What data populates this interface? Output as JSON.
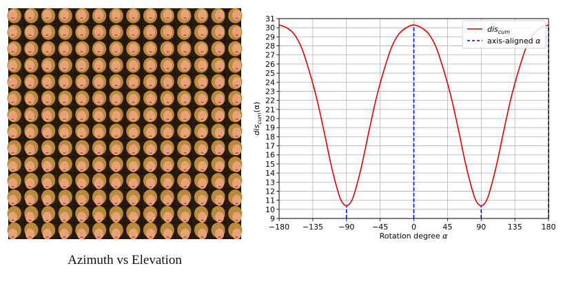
{
  "face_grid": {
    "rows": 14,
    "cols": 14,
    "caption": "Azimuth vs Elevation"
  },
  "chart_data": {
    "type": "line",
    "title": "",
    "xlabel": "Rotation degree α",
    "ylabel": "dis_cum(α)",
    "ylabel_main": "dis",
    "ylabel_sub": "cum",
    "ylabel_suffix": "(α)",
    "xlabel_main": "Rotation degree ",
    "xlabel_greek": "α",
    "xlim": [
      -180,
      180
    ],
    "ylim": [
      9,
      31
    ],
    "xticks": [
      -180,
      -135,
      -90,
      -45,
      0,
      45,
      90,
      135,
      180
    ],
    "xtick_labels": [
      "−180",
      "−135",
      "−90",
      "−45",
      "0",
      "45",
      "90",
      "135",
      "180"
    ],
    "yticks": [
      9,
      10,
      11,
      12,
      13,
      14,
      15,
      16,
      17,
      18,
      19,
      20,
      21,
      22,
      23,
      24,
      25,
      26,
      27,
      28,
      29,
      30,
      31
    ],
    "grid": true,
    "legend": {
      "placement": "top-right",
      "entries": [
        {
          "label_main": "dis",
          "label_sub": "cum",
          "color": "#e00000",
          "style": "solid"
        },
        {
          "label_main": "axis-aligned ",
          "label_greek": "α",
          "color": "#0000dd",
          "style": "dashed"
        }
      ]
    },
    "series": [
      {
        "name": "dis_cum",
        "color": "#e00000",
        "x": [
          -180,
          -170,
          -160,
          -150,
          -140,
          -130,
          -120,
          -110,
          -100,
          -95,
          -90,
          -85,
          -80,
          -70,
          -60,
          -50,
          -40,
          -30,
          -20,
          -10,
          0,
          10,
          20,
          30,
          40,
          50,
          60,
          70,
          80,
          85,
          90,
          95,
          100,
          110,
          120,
          130,
          140,
          150,
          160,
          170,
          180
        ],
        "y": [
          30.3,
          30.0,
          29.3,
          27.8,
          25.3,
          22.3,
          18.6,
          14.7,
          11.6,
          10.7,
          10.4,
          10.7,
          11.6,
          14.7,
          18.6,
          22.3,
          25.3,
          27.8,
          29.3,
          30.0,
          30.3,
          30.0,
          29.3,
          27.8,
          25.3,
          22.3,
          18.6,
          14.7,
          11.6,
          10.7,
          10.4,
          10.7,
          11.6,
          14.7,
          18.6,
          22.3,
          25.3,
          27.8,
          29.3,
          30.0,
          30.3
        ]
      },
      {
        "name": "axis-aligned α",
        "color": "#0000dd",
        "vlines": [
          {
            "x": -90,
            "y": 10.4
          },
          {
            "x": 0,
            "y": 30.3
          },
          {
            "x": 90,
            "y": 10.4
          },
          {
            "x": 180,
            "y": 30.3
          }
        ]
      }
    ]
  }
}
